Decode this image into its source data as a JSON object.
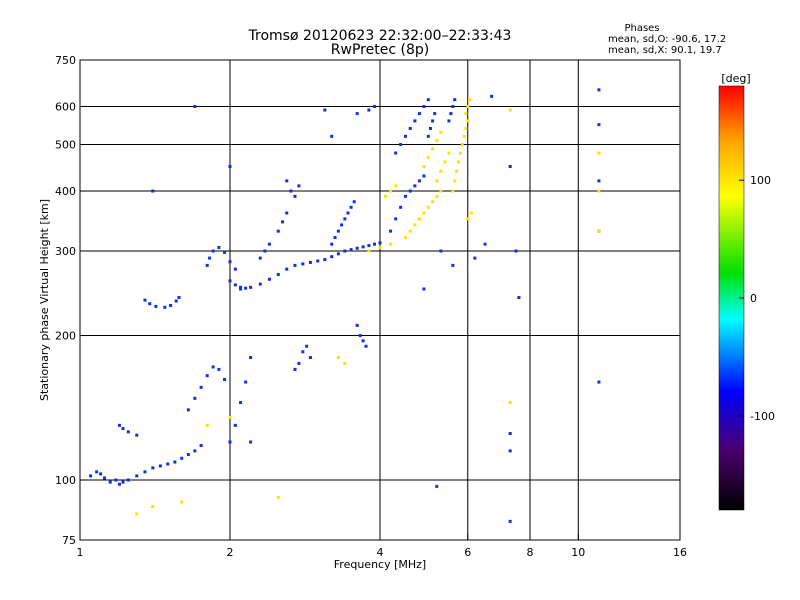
{
  "chart_data": {
    "type": "scatter",
    "title": "Tromsø 20120623 22:32:00–22:33:43",
    "subtitle": "RwPretec (8p)",
    "xlabel": "Frequency [MHz]",
    "ylabel": "Stationary phase Virtual Height [km]",
    "x_scale": "log",
    "y_scale": "log",
    "xlim": [
      1,
      16
    ],
    "ylim": [
      75,
      750
    ],
    "x_ticks": [
      1,
      2,
      4,
      6,
      8,
      10,
      16
    ],
    "y_ticks": [
      75,
      100,
      200,
      300,
      400,
      500,
      600,
      750
    ],
    "grid": true,
    "colorbar": {
      "label": "[deg]",
      "range": [
        -180,
        180
      ],
      "ticks": [
        100,
        0,
        -100
      ],
      "colormap": [
        "#000000",
        "#4a006e",
        "#0000ff",
        "#00ffff",
        "#00e000",
        "#ffff00",
        "#ffa500",
        "#ff0000"
      ]
    },
    "phase_stats": {
      "heading": "Phases",
      "line_o": "mean, sd,O: -90.6, 17.2",
      "line_x": "mean, sd,X:  90.1, 19.7"
    },
    "series": [
      {
        "name": "O",
        "color": "#1030e0",
        "points": [
          [
            1.05,
            102
          ],
          [
            1.08,
            104
          ],
          [
            1.1,
            103
          ],
          [
            1.12,
            101
          ],
          [
            1.15,
            99
          ],
          [
            1.18,
            100
          ],
          [
            1.2,
            98
          ],
          [
            1.22,
            99
          ],
          [
            1.25,
            100
          ],
          [
            1.3,
            102
          ],
          [
            1.35,
            104
          ],
          [
            1.4,
            106
          ],
          [
            1.45,
            107
          ],
          [
            1.5,
            108
          ],
          [
            1.55,
            109
          ],
          [
            1.6,
            111
          ],
          [
            1.65,
            113
          ],
          [
            1.7,
            115
          ],
          [
            1.75,
            118
          ],
          [
            1.2,
            130
          ],
          [
            1.22,
            128
          ],
          [
            1.25,
            126
          ],
          [
            1.3,
            124
          ],
          [
            1.35,
            237
          ],
          [
            1.38,
            233
          ],
          [
            1.42,
            230
          ],
          [
            1.48,
            229
          ],
          [
            1.52,
            231
          ],
          [
            1.56,
            236
          ],
          [
            1.58,
            240
          ],
          [
            1.65,
            140
          ],
          [
            1.7,
            148
          ],
          [
            1.75,
            156
          ],
          [
            1.8,
            165
          ],
          [
            1.85,
            172
          ],
          [
            1.9,
            170
          ],
          [
            1.95,
            162
          ],
          [
            1.8,
            280
          ],
          [
            1.82,
            290
          ],
          [
            1.85,
            300
          ],
          [
            1.9,
            305
          ],
          [
            1.95,
            298
          ],
          [
            2.0,
            285
          ],
          [
            2.05,
            275
          ],
          [
            2.0,
            260
          ],
          [
            2.05,
            255
          ],
          [
            2.1,
            252
          ],
          [
            2.15,
            251
          ],
          [
            2.2,
            252
          ],
          [
            2.3,
            256
          ],
          [
            2.4,
            262
          ],
          [
            2.5,
            268
          ],
          [
            2.6,
            275
          ],
          [
            2.7,
            280
          ],
          [
            2.8,
            282
          ],
          [
            2.9,
            284
          ],
          [
            3.0,
            286
          ],
          [
            3.1,
            288
          ],
          [
            3.2,
            292
          ],
          [
            3.3,
            296
          ],
          [
            3.4,
            300
          ],
          [
            3.5,
            302
          ],
          [
            3.6,
            304
          ],
          [
            3.7,
            306
          ],
          [
            3.8,
            308
          ],
          [
            3.9,
            310
          ],
          [
            4.0,
            312
          ],
          [
            2.0,
            120
          ],
          [
            2.05,
            130
          ],
          [
            2.1,
            145
          ],
          [
            2.15,
            160
          ],
          [
            2.2,
            180
          ],
          [
            2.3,
            290
          ],
          [
            2.35,
            300
          ],
          [
            2.4,
            310
          ],
          [
            2.5,
            330
          ],
          [
            2.55,
            345
          ],
          [
            2.6,
            360
          ],
          [
            2.6,
            420
          ],
          [
            2.65,
            400
          ],
          [
            2.7,
            390
          ],
          [
            2.75,
            410
          ],
          [
            2.7,
            170
          ],
          [
            2.75,
            175
          ],
          [
            2.8,
            185
          ],
          [
            2.85,
            190
          ],
          [
            2.9,
            180
          ],
          [
            3.2,
            310
          ],
          [
            3.25,
            320
          ],
          [
            3.3,
            330
          ],
          [
            3.35,
            340
          ],
          [
            3.4,
            350
          ],
          [
            3.45,
            360
          ],
          [
            3.5,
            370
          ],
          [
            3.55,
            380
          ],
          [
            3.6,
            210
          ],
          [
            3.65,
            200
          ],
          [
            3.7,
            195
          ],
          [
            3.75,
            190
          ],
          [
            3.6,
            580
          ],
          [
            3.8,
            590
          ],
          [
            3.9,
            600
          ],
          [
            4.2,
            330
          ],
          [
            4.3,
            350
          ],
          [
            4.4,
            370
          ],
          [
            4.5,
            390
          ],
          [
            4.6,
            400
          ],
          [
            4.7,
            410
          ],
          [
            4.8,
            420
          ],
          [
            4.9,
            430
          ],
          [
            4.3,
            480
          ],
          [
            4.4,
            500
          ],
          [
            4.5,
            520
          ],
          [
            4.6,
            540
          ],
          [
            4.7,
            560
          ],
          [
            4.8,
            580
          ],
          [
            4.9,
            600
          ],
          [
            5.0,
            620
          ],
          [
            5.0,
            520
          ],
          [
            5.05,
            540
          ],
          [
            5.1,
            560
          ],
          [
            5.15,
            580
          ],
          [
            5.5,
            560
          ],
          [
            5.55,
            580
          ],
          [
            5.6,
            600
          ],
          [
            5.65,
            620
          ],
          [
            5.3,
            300
          ],
          [
            5.6,
            280
          ],
          [
            4.9,
            250
          ],
          [
            5.2,
            97
          ],
          [
            6.2,
            290
          ],
          [
            6.5,
            310
          ],
          [
            6.7,
            630
          ],
          [
            7.3,
            450
          ],
          [
            7.3,
            125
          ],
          [
            7.3,
            115
          ],
          [
            7.3,
            82
          ],
          [
            7.5,
            300
          ],
          [
            7.6,
            240
          ],
          [
            11,
            550
          ],
          [
            11,
            420
          ],
          [
            11,
            650
          ],
          [
            11,
            330
          ],
          [
            11,
            160
          ],
          [
            1.4,
            400
          ],
          [
            1.7,
            600
          ],
          [
            2.0,
            450
          ],
          [
            2.1,
            250
          ],
          [
            2.2,
            120
          ],
          [
            3.1,
            590
          ],
          [
            3.2,
            520
          ]
        ]
      },
      {
        "name": "X",
        "color": "#ffe000",
        "points": [
          [
            4.5,
            320
          ],
          [
            4.6,
            330
          ],
          [
            4.7,
            340
          ],
          [
            4.8,
            350
          ],
          [
            4.9,
            360
          ],
          [
            5.0,
            370
          ],
          [
            5.1,
            380
          ],
          [
            5.2,
            390
          ],
          [
            5.3,
            400
          ],
          [
            4.9,
            450
          ],
          [
            5.0,
            470
          ],
          [
            5.1,
            490
          ],
          [
            5.2,
            510
          ],
          [
            5.3,
            530
          ],
          [
            5.6,
            400
          ],
          [
            5.65,
            420
          ],
          [
            5.7,
            440
          ],
          [
            5.75,
            460
          ],
          [
            5.8,
            480
          ],
          [
            5.85,
            500
          ],
          [
            5.9,
            520
          ],
          [
            5.95,
            540
          ],
          [
            6.0,
            560
          ],
          [
            5.95,
            580
          ],
          [
            6.0,
            600
          ],
          [
            6.05,
            620
          ],
          [
            5.2,
            420
          ],
          [
            5.3,
            440
          ],
          [
            5.4,
            460
          ],
          [
            5.5,
            480
          ],
          [
            3.8,
            300
          ],
          [
            4.0,
            305
          ],
          [
            4.2,
            310
          ],
          [
            1.3,
            85
          ],
          [
            1.4,
            88
          ],
          [
            1.6,
            90
          ],
          [
            1.8,
            130
          ],
          [
            2.0,
            135
          ],
          [
            2.5,
            92
          ],
          [
            3.3,
            180
          ],
          [
            3.4,
            175
          ],
          [
            4.1,
            390
          ],
          [
            4.2,
            400
          ],
          [
            4.3,
            410
          ],
          [
            6.0,
            350
          ],
          [
            6.1,
            360
          ],
          [
            7.3,
            590
          ],
          [
            7.3,
            145
          ],
          [
            11,
            480
          ],
          [
            11,
            400
          ],
          [
            11,
            330
          ]
        ]
      }
    ]
  }
}
